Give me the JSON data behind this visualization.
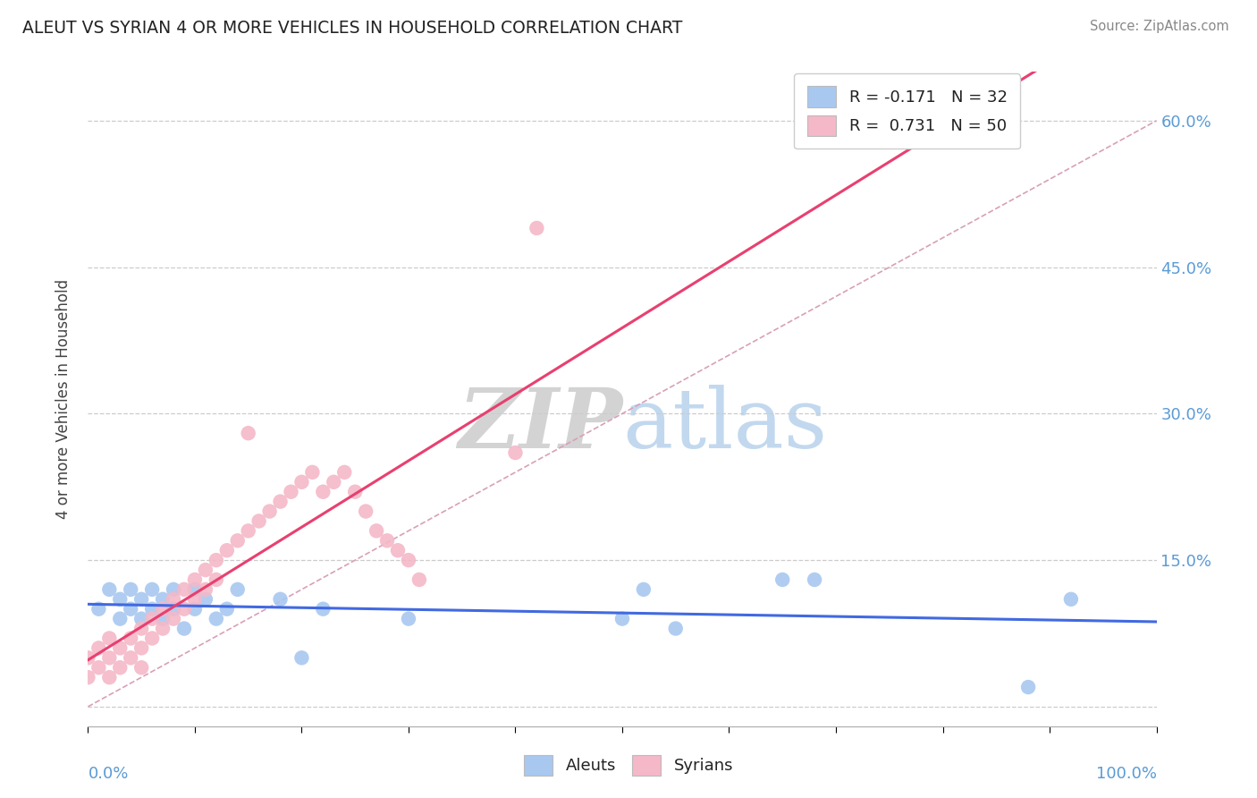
{
  "title": "ALEUT VS SYRIAN 4 OR MORE VEHICLES IN HOUSEHOLD CORRELATION CHART",
  "source": "Source: ZipAtlas.com",
  "ylabel": "4 or more Vehicles in Household",
  "xlim": [
    0.0,
    1.0
  ],
  "ylim": [
    -0.02,
    0.65
  ],
  "yticks": [
    0.0,
    0.15,
    0.3,
    0.45,
    0.6
  ],
  "ytick_labels": [
    "",
    "15.0%",
    "30.0%",
    "45.0%",
    "60.0%"
  ],
  "aleuts_color": "#a8c8f0",
  "syrians_color": "#f4b8c8",
  "aleuts_line_color": "#4169e1",
  "syrians_line_color": "#e8406080",
  "diag_line_color": "#e8a0b8",
  "legend_aleuts_label": "R = -0.171   N = 32",
  "legend_syrians_label": "R =  0.731   N = 50",
  "watermark_zip": "ZIP",
  "watermark_atlas": "atlas",
  "aleuts_R": -0.171,
  "syrians_R": 0.731,
  "aleuts_x": [
    0.01,
    0.02,
    0.03,
    0.03,
    0.04,
    0.04,
    0.05,
    0.05,
    0.06,
    0.06,
    0.07,
    0.07,
    0.08,
    0.08,
    0.09,
    0.1,
    0.1,
    0.11,
    0.12,
    0.13,
    0.14,
    0.18,
    0.22,
    0.3,
    0.5,
    0.52,
    0.65,
    0.68,
    0.88,
    0.92,
    0.2,
    0.55
  ],
  "aleuts_y": [
    0.1,
    0.12,
    0.11,
    0.09,
    0.12,
    0.1,
    0.11,
    0.09,
    0.12,
    0.1,
    0.11,
    0.09,
    0.12,
    0.1,
    0.08,
    0.12,
    0.1,
    0.11,
    0.09,
    0.1,
    0.12,
    0.11,
    0.1,
    0.09,
    0.09,
    0.12,
    0.13,
    0.13,
    0.02,
    0.11,
    0.05,
    0.08
  ],
  "syrians_x": [
    0.0,
    0.0,
    0.01,
    0.01,
    0.02,
    0.02,
    0.02,
    0.03,
    0.03,
    0.04,
    0.04,
    0.05,
    0.05,
    0.05,
    0.06,
    0.06,
    0.07,
    0.07,
    0.08,
    0.08,
    0.09,
    0.09,
    0.1,
    0.1,
    0.11,
    0.11,
    0.12,
    0.12,
    0.13,
    0.14,
    0.15,
    0.15,
    0.16,
    0.17,
    0.18,
    0.19,
    0.2,
    0.21,
    0.22,
    0.23,
    0.24,
    0.25,
    0.26,
    0.27,
    0.28,
    0.29,
    0.3,
    0.31,
    0.4,
    0.42
  ],
  "syrians_y": [
    0.05,
    0.03,
    0.06,
    0.04,
    0.07,
    0.05,
    0.03,
    0.06,
    0.04,
    0.07,
    0.05,
    0.08,
    0.06,
    0.04,
    0.09,
    0.07,
    0.1,
    0.08,
    0.11,
    0.09,
    0.12,
    0.1,
    0.13,
    0.11,
    0.14,
    0.12,
    0.15,
    0.13,
    0.16,
    0.17,
    0.18,
    0.28,
    0.19,
    0.2,
    0.21,
    0.22,
    0.23,
    0.24,
    0.22,
    0.23,
    0.24,
    0.22,
    0.2,
    0.18,
    0.17,
    0.16,
    0.15,
    0.13,
    0.26,
    0.49
  ]
}
